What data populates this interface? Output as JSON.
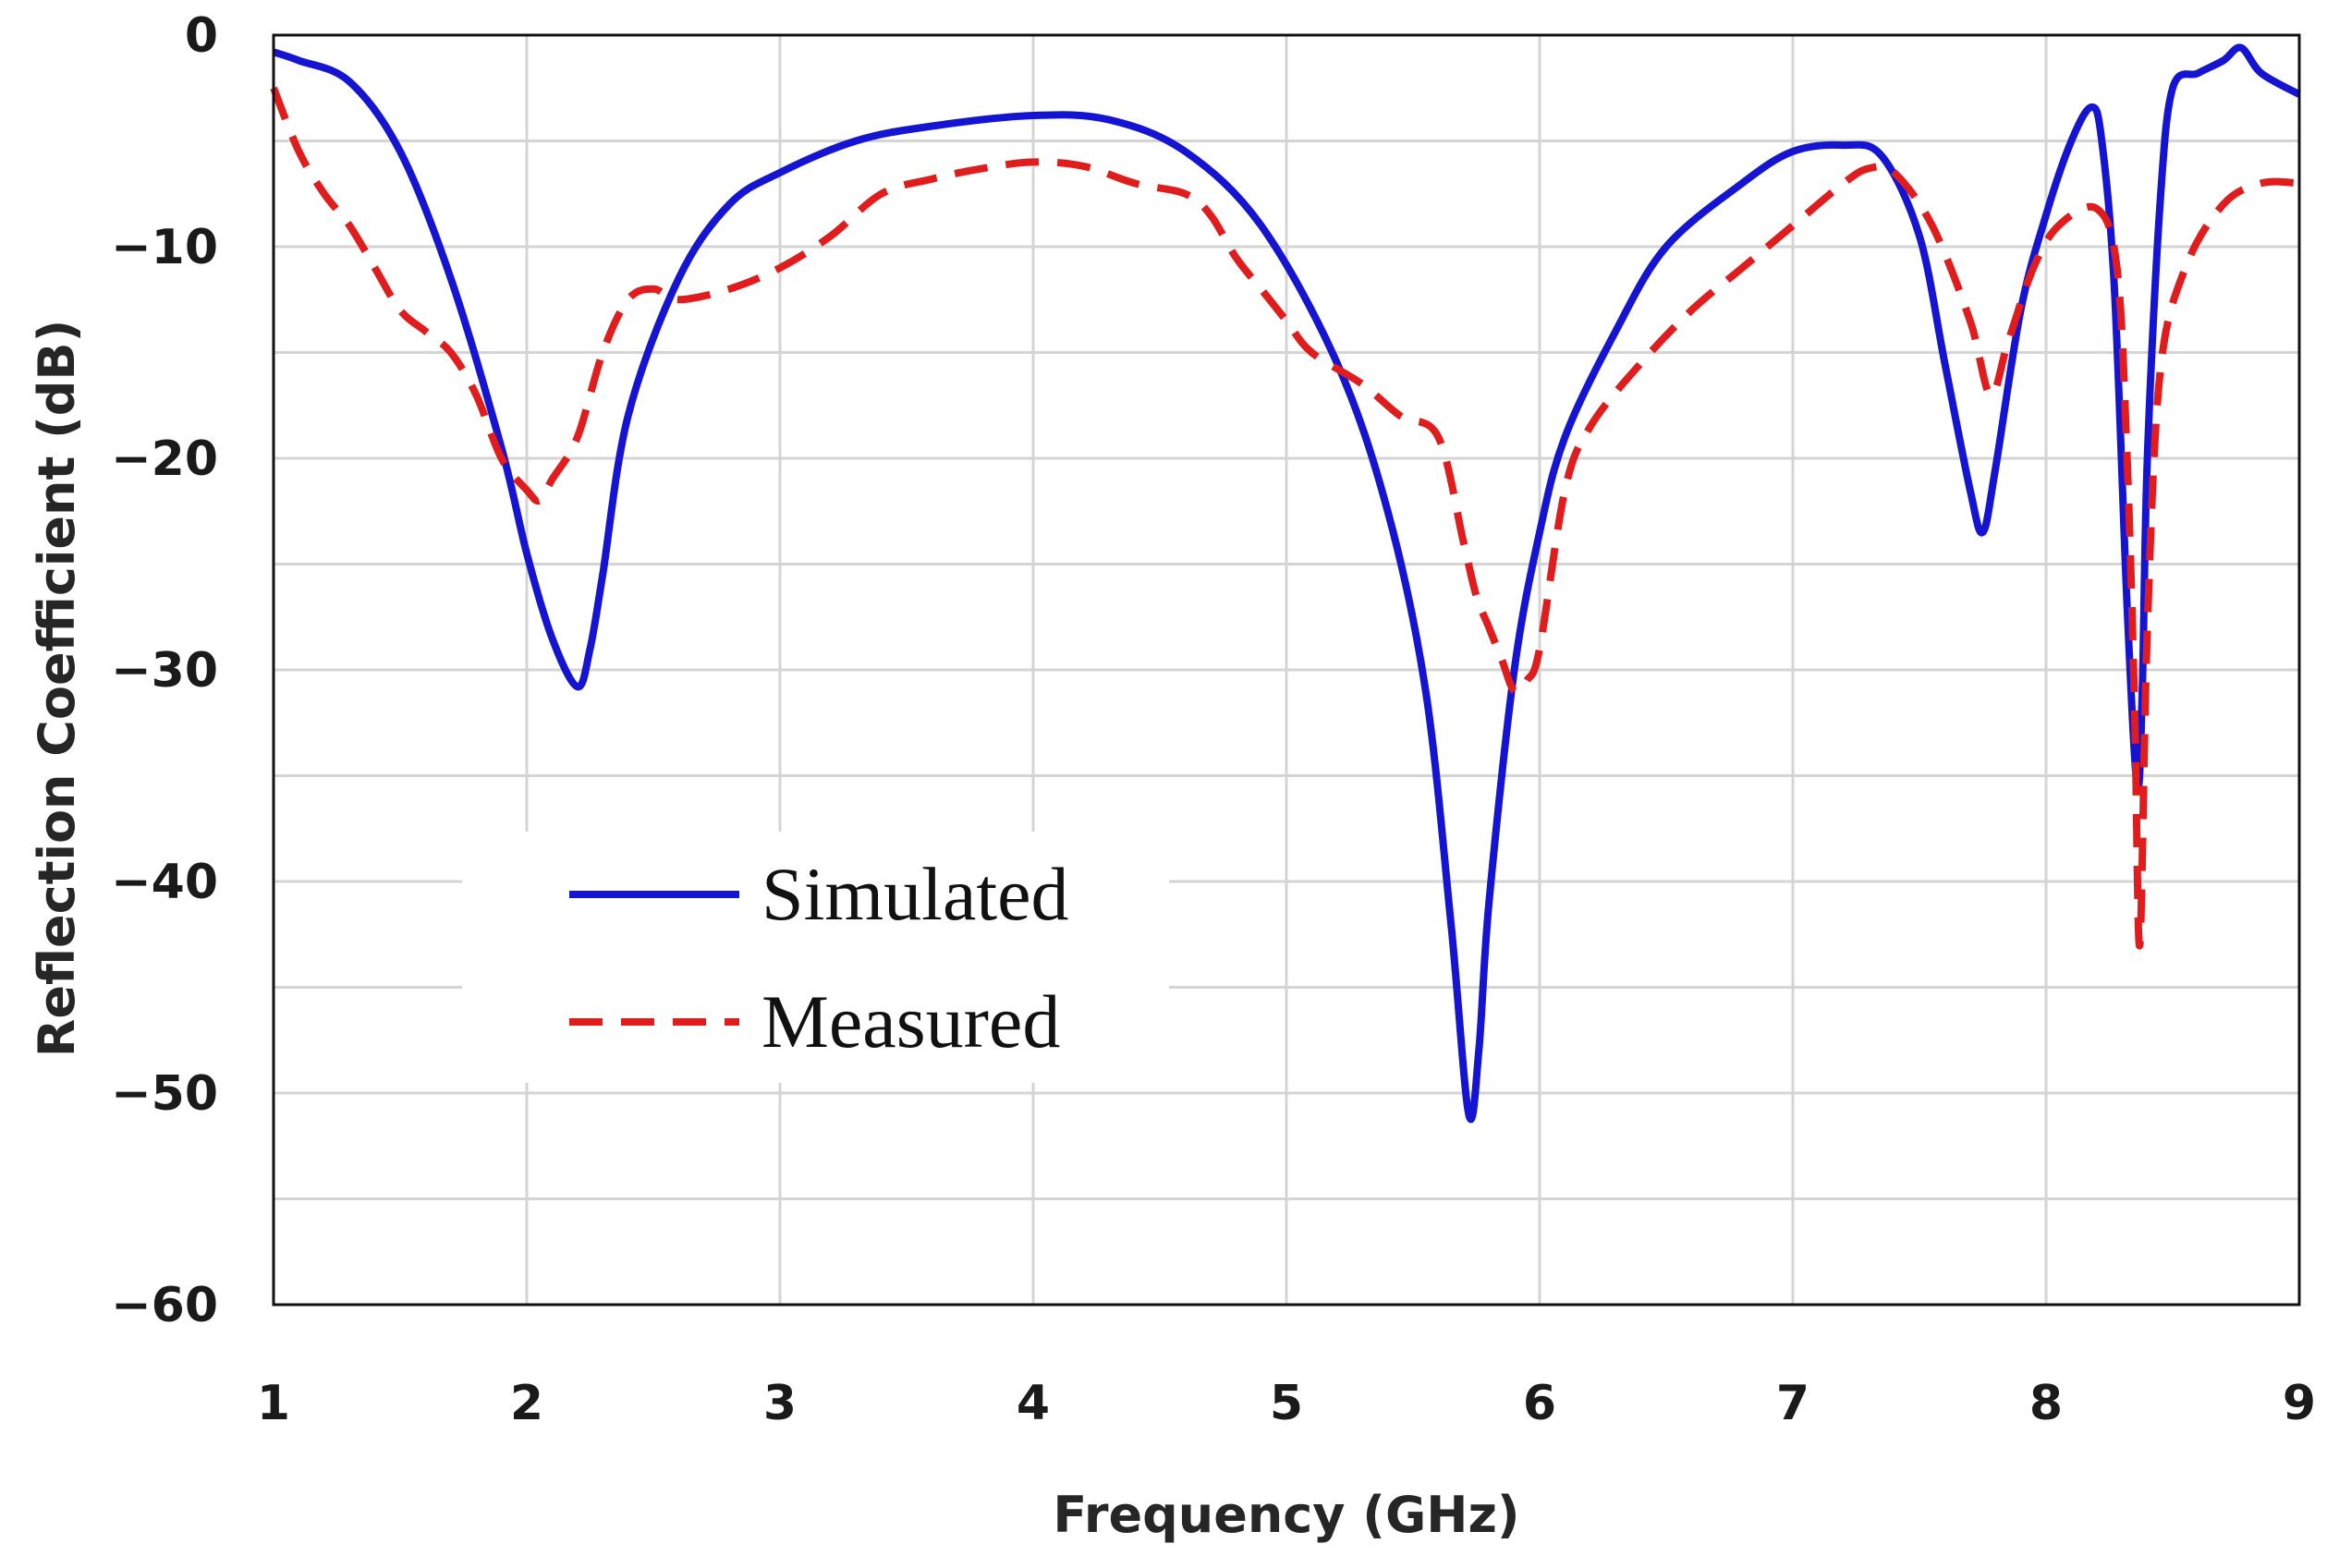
{
  "chart_data": {
    "type": "line",
    "title": "",
    "xlabel": "Frequency (GHz)",
    "ylabel": "Reflection Coefficient (dB)",
    "xlim": [
      1,
      9
    ],
    "ylim": [
      -60,
      0
    ],
    "x_ticks": [
      1,
      2,
      3,
      4,
      5,
      6,
      7,
      8,
      9
    ],
    "y_ticks": [
      0,
      -10,
      -20,
      -30,
      -40,
      -50,
      -60
    ],
    "x_tick_labels": [
      "1",
      "2",
      "3",
      "4",
      "5",
      "6",
      "7",
      "8",
      "9"
    ],
    "y_tick_labels": [
      "0",
      "−10",
      "−20",
      "−30",
      "−40",
      "−50",
      "−60"
    ],
    "grid": true,
    "legend_position": "lower-left",
    "series": [
      {
        "name": "Simulated",
        "color": "#1414d2",
        "style": "solid",
        "x": [
          1.0,
          1.1,
          1.3,
          1.5,
          1.7,
          1.9,
          2.0,
          2.1,
          2.2,
          2.25,
          2.3,
          2.4,
          2.6,
          2.8,
          3.0,
          3.3,
          3.6,
          4.0,
          4.3,
          4.6,
          4.9,
          5.2,
          5.4,
          5.55,
          5.65,
          5.72,
          5.76,
          5.8,
          5.9,
          6.0,
          6.1,
          6.3,
          6.5,
          6.8,
          7.0,
          7.2,
          7.35,
          7.5,
          7.6,
          7.7,
          7.75,
          7.8,
          7.9,
          8.0,
          8.1,
          8.18,
          8.22,
          8.27,
          8.32,
          8.36,
          8.38,
          8.4,
          8.45,
          8.5,
          8.6,
          8.7,
          8.77,
          8.85,
          9.0
        ],
        "y": [
          -0.8,
          -1.2,
          -2.2,
          -5.5,
          -11.5,
          -19.5,
          -24.5,
          -28.5,
          -30.8,
          -29.0,
          -25.5,
          -18.0,
          -11.5,
          -8.0,
          -6.5,
          -5.0,
          -4.3,
          -3.8,
          -4.0,
          -5.5,
          -9.0,
          -15.5,
          -22.5,
          -31.0,
          -42.0,
          -51.0,
          -48.0,
          -41.0,
          -30.0,
          -23.5,
          -19.0,
          -14.0,
          -10.0,
          -7.0,
          -5.5,
          -5.2,
          -5.7,
          -9.5,
          -15.5,
          -21.5,
          -23.5,
          -20.5,
          -13.0,
          -8.5,
          -5.0,
          -3.4,
          -5.0,
          -12.0,
          -27.0,
          -35.5,
          -31.0,
          -20.0,
          -8.0,
          -2.5,
          -1.8,
          -1.2,
          -0.6,
          -1.8,
          -2.8
        ]
      },
      {
        "name": "Measured",
        "color": "#e11c1c",
        "style": "dashed",
        "x": [
          1.0,
          1.1,
          1.2,
          1.3,
          1.4,
          1.5,
          1.6,
          1.7,
          1.8,
          1.9,
          2.0,
          2.05,
          2.1,
          2.2,
          2.3,
          2.4,
          2.5,
          2.6,
          2.8,
          3.0,
          3.2,
          3.4,
          3.6,
          3.8,
          4.0,
          4.2,
          4.4,
          4.6,
          4.7,
          4.8,
          4.9,
          5.0,
          5.1,
          5.3,
          5.45,
          5.6,
          5.7,
          5.75,
          5.8,
          5.85,
          5.9,
          5.95,
          6.0,
          6.1,
          6.2,
          6.4,
          6.6,
          6.8,
          7.0,
          7.2,
          7.3,
          7.4,
          7.55,
          7.7,
          7.78,
          7.85,
          7.95,
          8.05,
          8.2,
          8.28,
          8.32,
          8.35,
          8.37,
          8.4,
          8.45,
          8.55,
          8.7,
          8.85,
          9.0
        ],
        "y": [
          -2.5,
          -5.5,
          -7.5,
          -9.0,
          -11.0,
          -13.0,
          -14.0,
          -15.0,
          -17.0,
          -20.0,
          -21.5,
          -22.0,
          -21.0,
          -19.0,
          -15.0,
          -12.5,
          -12.0,
          -12.5,
          -12.0,
          -11.0,
          -9.5,
          -7.5,
          -6.8,
          -6.3,
          -6.0,
          -6.2,
          -7.0,
          -7.5,
          -8.5,
          -10.5,
          -12.0,
          -13.5,
          -15.0,
          -16.5,
          -18.0,
          -19.0,
          -24.0,
          -26.5,
          -28.0,
          -29.5,
          -31.0,
          -30.5,
          -29.0,
          -21.5,
          -18.5,
          -15.5,
          -13.0,
          -11.0,
          -9.0,
          -7.0,
          -6.3,
          -6.5,
          -9.0,
          -13.5,
          -17.0,
          -14.5,
          -11.0,
          -9.0,
          -8.2,
          -11.0,
          -20.0,
          -32.0,
          -43.0,
          -28.0,
          -16.0,
          -11.0,
          -8.0,
          -7.0,
          -7.0
        ]
      }
    ]
  }
}
